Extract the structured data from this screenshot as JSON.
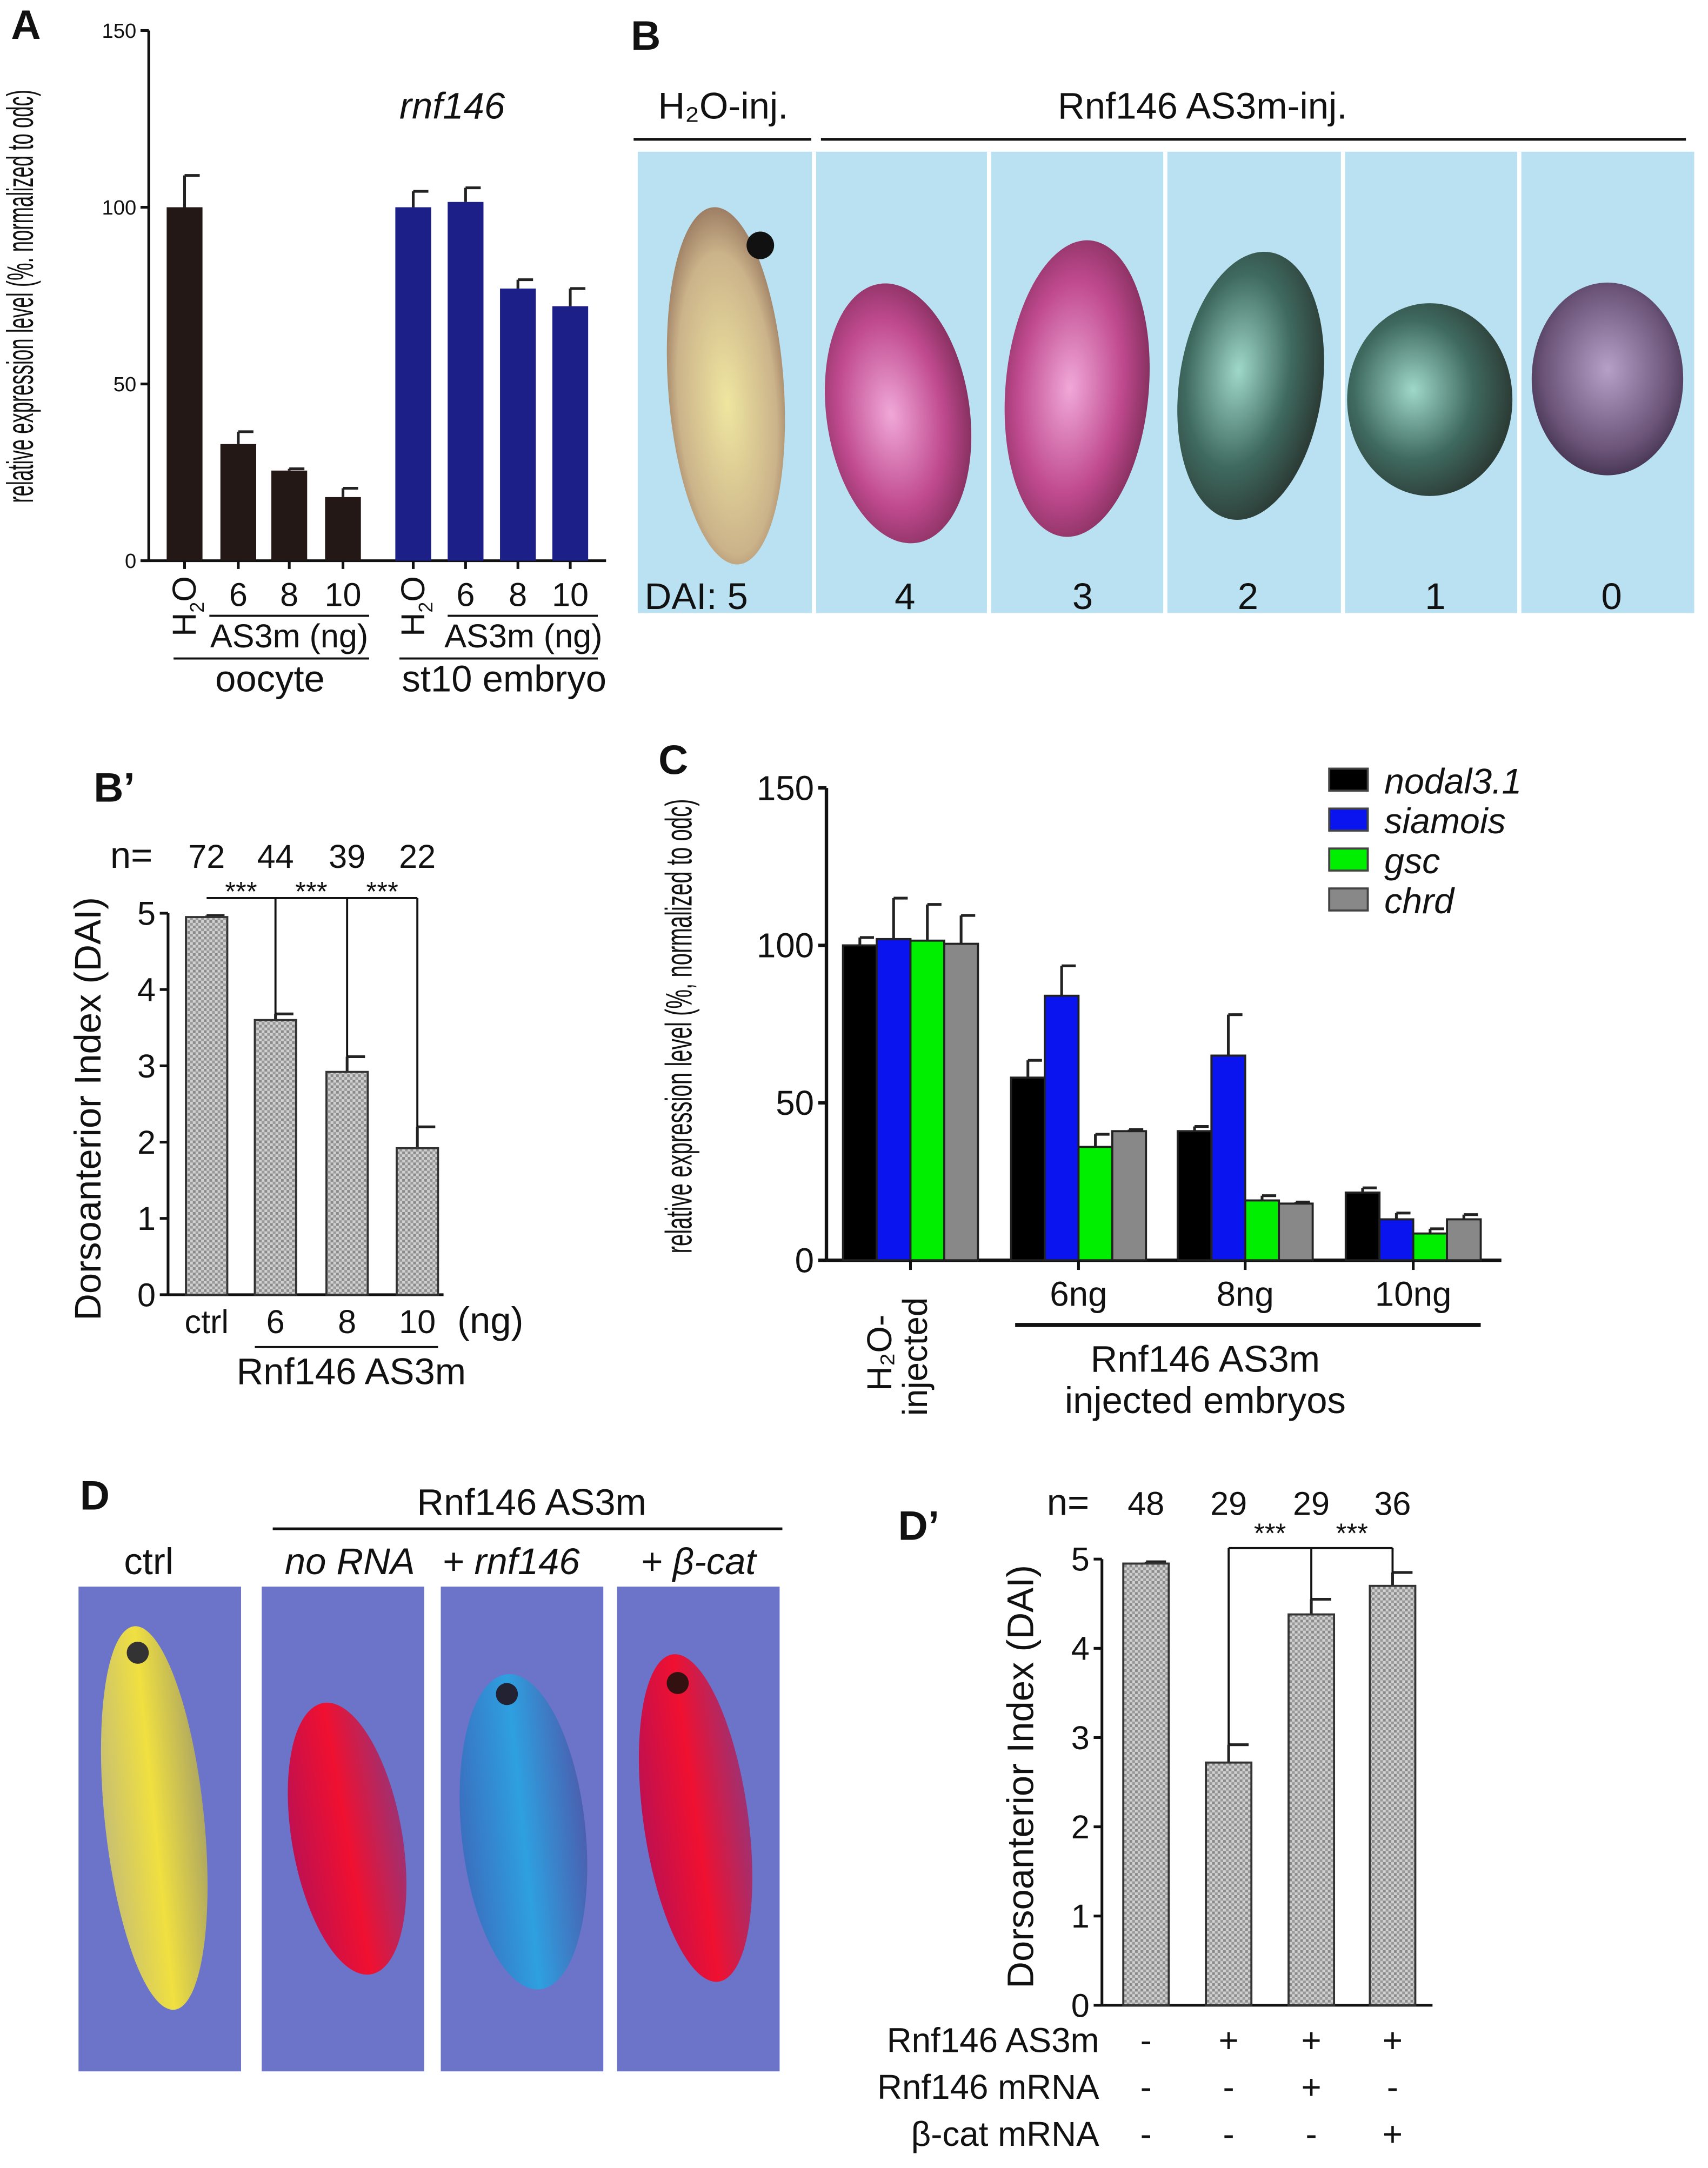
{
  "panels": {
    "A": "A",
    "B": "B",
    "Bp": "B’",
    "C": "C",
    "D": "D",
    "Dp": "D’"
  },
  "panel_b": {
    "group_h2o": "H₂O-inj.",
    "group_as3m": "Rnf146 AS3m-inj.",
    "dai_prefix": "DAI: 5",
    "dai_values": [
      "4",
      "3",
      "2",
      "1",
      "0"
    ],
    "background": "#b9e1f1"
  },
  "panel_d": {
    "ctrl": "ctrl",
    "group": "Rnf146 AS3m",
    "no_rna": "no RNA",
    "plus_rnf146": "+ rnf146",
    "plus_bcat": "+ β-cat",
    "background": "#6b74c9"
  },
  "chart_data": [
    {
      "id": "A",
      "type": "bar",
      "title": "rnf146",
      "ylabel": "relative expression level (%. normalized to odc)",
      "ylim": [
        0,
        150
      ],
      "yticks": [
        "0",
        "50",
        "100",
        "150"
      ],
      "categories": [
        "H2O",
        "6",
        "8",
        "10",
        "H2O",
        "6",
        "8",
        "10"
      ],
      "group_labels": [
        "AS3m (ng)",
        "AS3m (ng)"
      ],
      "supergroup_labels": [
        "oocyte",
        "st10 embryo"
      ],
      "values": [
        100,
        33,
        25.5,
        18,
        100,
        101.5,
        77,
        72
      ],
      "errors": [
        9,
        3.5,
        0.5,
        2.5,
        4.5,
        4,
        2.5,
        5
      ],
      "colors": [
        "#231815",
        "#231815",
        "#231815",
        "#231815",
        "#1c1f87",
        "#1c1f87",
        "#1c1f87",
        "#1c1f87"
      ]
    },
    {
      "id": "B'",
      "type": "bar",
      "ylabel": "Dorsoanterior Index (DAI)",
      "ylim": [
        0,
        5
      ],
      "yticks": [
        "0",
        "1",
        "2",
        "3",
        "4",
        "5"
      ],
      "categories": [
        "ctrl",
        "6",
        "8",
        "10"
      ],
      "unit_label": "(ng)",
      "group_label": "Rnf146 AS3m",
      "n_label": "n=",
      "n": [
        "72",
        "44",
        "39",
        "22"
      ],
      "significance": [
        "***",
        "***",
        "***"
      ],
      "values": [
        4.95,
        3.6,
        2.92,
        1.92
      ],
      "errors": [
        0.02,
        0.08,
        0.2,
        0.28
      ]
    },
    {
      "id": "C",
      "type": "bar",
      "ylabel": "relative expression level (%, normalized to odc)",
      "ylim": [
        0,
        150
      ],
      "yticks": [
        "0",
        "50",
        "100",
        "150"
      ],
      "categories": [
        "H2O-injected",
        "6ng",
        "8ng",
        "10ng"
      ],
      "group_label_line1": "Rnf146 AS3m",
      "group_label_line2": "injected embryos",
      "legend": "top-right",
      "series": [
        {
          "name": "nodal3.1",
          "color": "#000000",
          "values": [
            100,
            58,
            41,
            21.5
          ],
          "errors": [
            2.5,
            5.5,
            1.5,
            1.5
          ]
        },
        {
          "name": "siamois",
          "color": "#0a14ee",
          "values": [
            102,
            84,
            65,
            13
          ],
          "errors": [
            13,
            9.5,
            13,
            2
          ]
        },
        {
          "name": "gsc",
          "color": "#00ee00",
          "values": [
            101.5,
            36,
            19,
            8.5
          ],
          "errors": [
            11.5,
            4,
            1.5,
            1.5
          ]
        },
        {
          "name": "chrd",
          "color": "#888888",
          "values": [
            100.5,
            41,
            18,
            13
          ],
          "errors": [
            9,
            0.5,
            0.5,
            1.5
          ]
        }
      ]
    },
    {
      "id": "D'",
      "type": "bar",
      "ylabel": "Dorsoanterior Index (DAI)",
      "ylim": [
        0,
        5
      ],
      "yticks": [
        "0",
        "1",
        "2",
        "3",
        "4",
        "5"
      ],
      "n_label": "n=",
      "n": [
        "48",
        "29",
        "29",
        "36"
      ],
      "significance": [
        "***",
        "***"
      ],
      "values": [
        4.95,
        2.72,
        4.38,
        4.7
      ],
      "errors": [
        0.02,
        0.2,
        0.17,
        0.15
      ],
      "conditions": [
        {
          "label": "Rnf146 AS3m",
          "marks": [
            "-",
            "+",
            "+",
            "+"
          ]
        },
        {
          "label": "Rnf146 mRNA",
          "marks": [
            "-",
            "-",
            "+",
            "-"
          ]
        },
        {
          "label": "β-cat mRNA",
          "marks": [
            "-",
            "-",
            "-",
            "+"
          ]
        }
      ]
    }
  ]
}
